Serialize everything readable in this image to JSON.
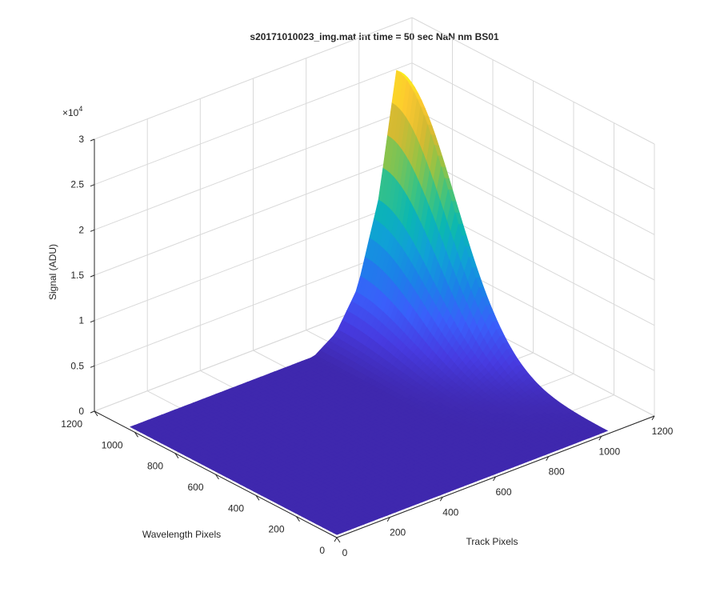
{
  "chart_data": {
    "type": "surface",
    "title": "s20171010023_img.mat int time = 50 sec  NaN nm BS01",
    "xlabel": "Track Pixels",
    "ylabel": "Wavelength Pixels",
    "zlabel": "Signal (ADU)",
    "z_exponent_label": "×10",
    "z_exponent_value": "4",
    "xlim": [
      0,
      1200
    ],
    "ylim": [
      0,
      1200
    ],
    "zlim": [
      0,
      30000
    ],
    "x_ticks": [
      0,
      200,
      400,
      600,
      800,
      1000,
      1200
    ],
    "y_ticks": [
      0,
      200,
      400,
      600,
      800,
      1000,
      1200
    ],
    "z_ticks": [
      0,
      5000,
      10000,
      15000,
      20000,
      25000,
      30000
    ],
    "x_tick_labels": [
      "0",
      "200",
      "400",
      "600",
      "800",
      "1000",
      "1200"
    ],
    "y_tick_labels": [
      "0",
      "200",
      "400",
      "600",
      "800",
      "1000",
      "1200"
    ],
    "z_tick_labels": [
      "0",
      "0.5",
      "1",
      "1.5",
      "2",
      "2.5",
      "3"
    ],
    "grid": true,
    "colormap": "parula",
    "data_extent": {
      "x": [
        1,
        1024
      ],
      "y": [
        1,
        1024
      ]
    },
    "baseline_signal": 300,
    "peak": {
      "x": 1010,
      "y": 1024,
      "signal": 29000
    },
    "profile": [
      {
        "track": 700,
        "signal": 400
      },
      {
        "track": 780,
        "signal": 2000
      },
      {
        "track": 860,
        "signal": 6000
      },
      {
        "track": 940,
        "signal": 15000
      },
      {
        "track": 1000,
        "signal": 27000
      },
      {
        "track": 1010,
        "signal": 29000
      },
      {
        "track": 1024,
        "signal": 28000
      }
    ]
  }
}
